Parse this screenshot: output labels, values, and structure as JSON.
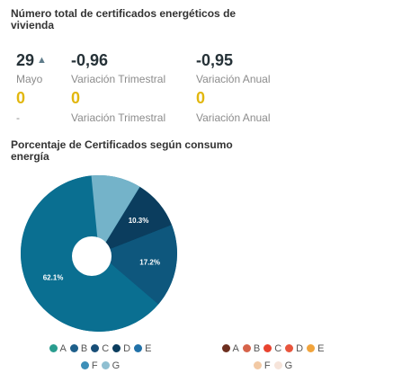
{
  "energy_certificates": {
    "title": "Número total de certificados energéticos de vivienda",
    "row1": [
      {
        "value": "29",
        "arrow": "▲",
        "label": "Mayo"
      },
      {
        "value": "-0,96",
        "label": "Variación Trimestral"
      },
      {
        "value": "-0,95",
        "label": "Variación Anual"
      }
    ],
    "row2": [
      {
        "value": "0",
        "label": "-"
      },
      {
        "value": "0",
        "label": "Variación Trimestral"
      },
      {
        "value": "0",
        "label": "Variación Anual"
      }
    ]
  },
  "consumption_chart": {
    "title": "Porcentaje de Certificados según consumo energía"
  },
  "chart_data": {
    "type": "pie",
    "title": "Porcentaje de Certificados según consumo energía",
    "donut": true,
    "categories": [
      "A",
      "B",
      "C",
      "D",
      "E",
      "F",
      "G"
    ],
    "values": [
      0,
      0,
      0,
      10.3,
      17.2,
      62.1,
      10.3
    ],
    "data_labels": [
      "",
      "",
      "",
      "10.3%",
      "17.2%",
      "62.1%",
      ""
    ],
    "colors": [
      "#1f9c8c",
      "#1f6f99",
      "#1a5a8a",
      "#0b3d5e",
      "#0e577d",
      "#0a6f91",
      "#74b3c9"
    ],
    "legend_placement": "bottom"
  },
  "legend_primary": {
    "items": [
      {
        "label": "A",
        "color": "#2a9d8f"
      },
      {
        "label": "B",
        "color": "#1d5f8a"
      },
      {
        "label": "C",
        "color": "#184e77"
      },
      {
        "label": "D",
        "color": "#0b3d5e"
      },
      {
        "label": "E",
        "color": "#2171a8"
      },
      {
        "label": "F",
        "color": "#3d8fb8"
      },
      {
        "label": "G",
        "color": "#8fbfd1"
      }
    ]
  },
  "legend_secondary": {
    "items": [
      {
        "label": "A",
        "color": "#6d2f1f"
      },
      {
        "label": "B",
        "color": "#d6634a"
      },
      {
        "label": "C",
        "color": "#e8432f"
      },
      {
        "label": "D",
        "color": "#e8553d"
      },
      {
        "label": "E",
        "color": "#f1a43c"
      },
      {
        "label": "F",
        "color": "#f2c9a4"
      },
      {
        "label": "G",
        "color": "#f6e4da"
      }
    ]
  }
}
